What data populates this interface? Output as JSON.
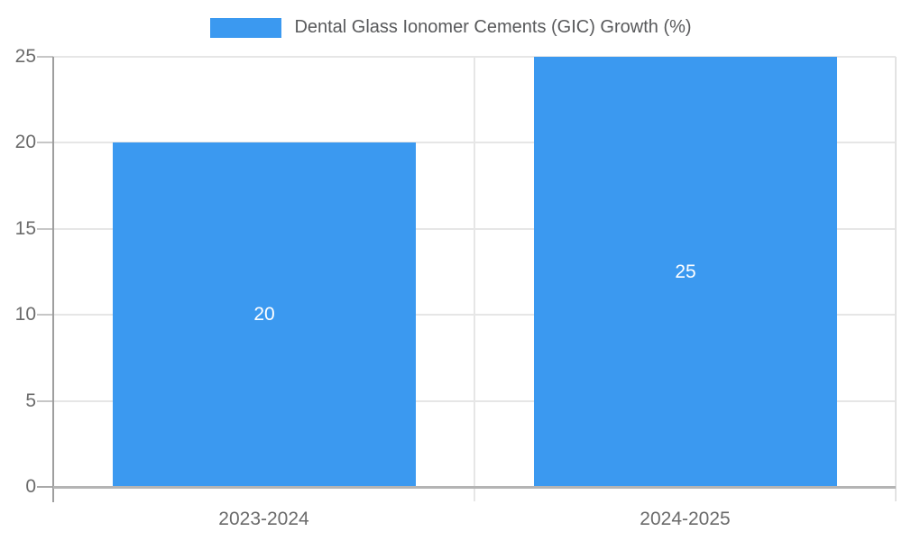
{
  "chart_data": {
    "type": "bar",
    "title": "",
    "legend": {
      "label": "Dental Glass Ionomer Cements (GIC) Growth (%)",
      "position": "top"
    },
    "categories": [
      "2023-2024",
      "2024-2025"
    ],
    "series": [
      {
        "name": "Dental Glass Ionomer Cements (GIC) Growth (%)",
        "values": [
          20,
          25
        ]
      }
    ],
    "value_labels": [
      "20",
      "25"
    ],
    "xlabel": "",
    "ylabel": "",
    "ylim": [
      0,
      25
    ],
    "yticks": [
      0,
      5,
      10,
      15,
      20,
      25
    ],
    "grid": true,
    "colors": {
      "bar": "#3b99f0",
      "grid_line": "#e6e6e6",
      "axis_line": "#9e9e9e",
      "baseline": "#b4b4b4",
      "tick": "#c6c6c6",
      "zero_tick": "#a9a9a9",
      "right_edge_line": "#e3e3e3",
      "axis_text": "#6b6b6b",
      "legend_text": "#58595b",
      "bar_label_text": "#ffffff",
      "background": "#ffffff"
    }
  }
}
